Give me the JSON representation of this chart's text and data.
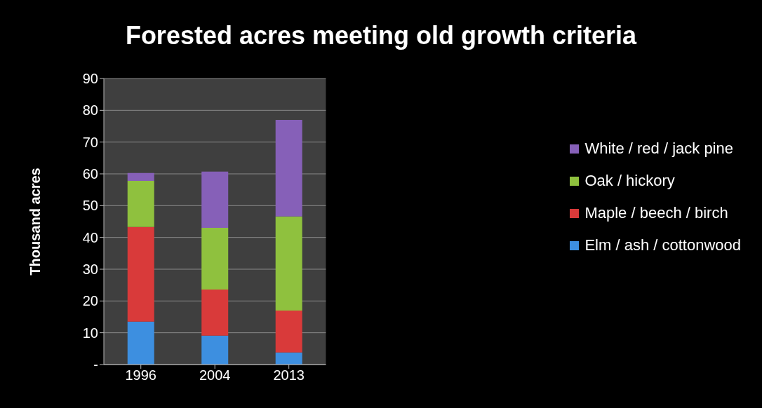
{
  "chart_data": {
    "type": "bar",
    "title": "Forested acres meeting old growth criteria",
    "ylabel": "Thousand acres",
    "categories": [
      "1996",
      "2004",
      "2013"
    ],
    "stacked": true,
    "series": [
      {
        "name": "Elm / ash / cottonwood",
        "color": "#3d8fe0",
        "values": [
          13.5,
          9.1,
          3.8
        ]
      },
      {
        "name": "Maple / beech / birch",
        "color": "#d93a3a",
        "values": [
          29.8,
          14.5,
          13.2
        ]
      },
      {
        "name": "Oak / hickory",
        "color": "#8fc13e",
        "values": [
          14.5,
          19.4,
          29.6
        ]
      },
      {
        "name": "White / red / jack pine",
        "color": "#8660b8",
        "values": [
          2.5,
          17.7,
          30.4
        ]
      }
    ],
    "ylim": [
      0,
      90
    ],
    "yticks": [
      {
        "value": 0,
        "label": "-"
      },
      10,
      20,
      30,
      40,
      50,
      60,
      70,
      80,
      90
    ],
    "grid": "y",
    "legend": "right"
  }
}
